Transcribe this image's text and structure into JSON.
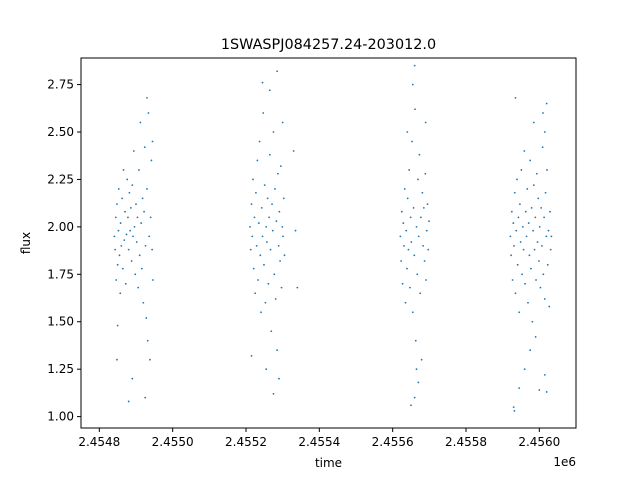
{
  "chart_data": {
    "type": "scatter",
    "title": "1SWASPJ084257.24-203012.0",
    "xlabel": "time",
    "ylabel": "flux",
    "x_offset_label": "1e6",
    "xlim": [
      2454750,
      2456100
    ],
    "ylim": [
      0.94,
      2.89
    ],
    "x_ticks": [
      2454800,
      2455000,
      2455200,
      2455400,
      2455600,
      2455800,
      2456000
    ],
    "x_tick_labels": [
      "2.4548",
      "2.4550",
      "2.4552",
      "2.4554",
      "2.4556",
      "2.4558",
      "2.4560"
    ],
    "y_ticks": [
      1.0,
      1.25,
      1.5,
      1.75,
      2.0,
      2.25,
      2.5,
      2.75
    ],
    "y_tick_labels": [
      "1.00",
      "1.25",
      "1.50",
      "1.75",
      "2.00",
      "2.25",
      "2.50",
      "2.75"
    ],
    "grid": false,
    "marker_color": "#1f77b4",
    "series": [
      {
        "points": [
          [
            2454841,
            1.95
          ],
          [
            2454843,
            1.88
          ],
          [
            2454845,
            2.05
          ],
          [
            2454846,
            1.72
          ],
          [
            2454848,
            2.12
          ],
          [
            2454850,
            1.8
          ],
          [
            2454852,
            1.98
          ],
          [
            2454853,
            2.2
          ],
          [
            2454855,
            1.85
          ],
          [
            2454857,
            1.65
          ],
          [
            2454858,
            2.02
          ],
          [
            2454860,
            1.9
          ],
          [
            2454862,
            2.15
          ],
          [
            2454864,
            1.78
          ],
          [
            2454866,
            2.3
          ],
          [
            2454868,
            1.93
          ],
          [
            2454870,
            2.08
          ],
          [
            2454872,
            1.7
          ],
          [
            2454874,
            1.96
          ],
          [
            2454876,
            2.25
          ],
          [
            2454878,
            2.05
          ],
          [
            2454880,
            1.88
          ],
          [
            2454882,
            2.18
          ],
          [
            2454884,
            1.98
          ],
          [
            2454886,
            2.1
          ],
          [
            2454888,
            1.82
          ],
          [
            2454890,
            2.22
          ],
          [
            2454892,
            1.95
          ],
          [
            2454894,
            2.4
          ],
          [
            2454896,
            2.0
          ],
          [
            2454898,
            1.75
          ],
          [
            2454900,
            2.12
          ],
          [
            2454902,
            1.92
          ],
          [
            2454904,
            2.05
          ],
          [
            2454906,
            1.68
          ],
          [
            2454908,
            2.3
          ],
          [
            2454910,
            1.85
          ],
          [
            2454912,
            2.55
          ],
          [
            2454914,
            2.02
          ],
          [
            2454916,
            1.78
          ],
          [
            2454918,
            2.15
          ],
          [
            2454920,
            1.6
          ],
          [
            2454922,
            2.08
          ],
          [
            2454924,
            2.42
          ],
          [
            2454926,
            1.9
          ],
          [
            2454928,
            1.52
          ],
          [
            2454930,
            2.2
          ],
          [
            2454932,
            1.4
          ],
          [
            2454934,
            2.6
          ],
          [
            2454936,
            1.95
          ],
          [
            2454938,
            1.3
          ],
          [
            2454940,
            2.05
          ],
          [
            2454942,
            2.35
          ],
          [
            2454944,
            1.88
          ],
          [
            2454946,
            1.72
          ],
          [
            2454890,
            1.2
          ],
          [
            2454930,
            2.68
          ],
          [
            2454850,
            1.48
          ],
          [
            2454848,
            1.3
          ],
          [
            2454880,
            1.08
          ],
          [
            2454925,
            1.1
          ],
          [
            2454945,
            2.45
          ],
          [
            2455211,
            2.0
          ],
          [
            2455213,
            1.88
          ],
          [
            2455215,
            2.12
          ],
          [
            2455217,
            1.95
          ],
          [
            2455219,
            2.25
          ],
          [
            2455221,
            1.78
          ],
          [
            2455223,
            2.05
          ],
          [
            2455225,
            1.65
          ],
          [
            2455227,
            2.18
          ],
          [
            2455229,
            1.9
          ],
          [
            2455231,
            2.35
          ],
          [
            2455233,
            1.72
          ],
          [
            2455235,
            2.02
          ],
          [
            2455237,
            2.45
          ],
          [
            2455239,
            1.85
          ],
          [
            2455241,
            1.55
          ],
          [
            2455243,
            2.1
          ],
          [
            2455245,
            1.95
          ],
          [
            2455247,
            2.6
          ],
          [
            2455249,
            1.8
          ],
          [
            2455251,
            2.22
          ],
          [
            2455253,
            1.6
          ],
          [
            2455255,
            2.0
          ],
          [
            2455257,
            1.92
          ],
          [
            2455259,
            2.15
          ],
          [
            2455261,
            1.7
          ],
          [
            2455263,
            2.05
          ],
          [
            2455265,
            2.38
          ],
          [
            2455267,
            1.88
          ],
          [
            2455269,
            1.45
          ],
          [
            2455271,
            2.12
          ],
          [
            2455273,
            1.98
          ],
          [
            2455275,
            2.5
          ],
          [
            2455277,
            1.75
          ],
          [
            2455279,
            2.2
          ],
          [
            2455281,
            1.62
          ],
          [
            2455283,
            2.03
          ],
          [
            2455285,
            1.35
          ],
          [
            2455287,
            2.28
          ],
          [
            2455289,
            1.9
          ],
          [
            2455291,
            2.08
          ],
          [
            2455293,
            1.82
          ],
          [
            2455295,
            2.32
          ],
          [
            2455297,
            1.68
          ],
          [
            2455299,
            2.0
          ],
          [
            2455301,
            1.95
          ],
          [
            2455303,
            2.15
          ],
          [
            2455305,
            1.85
          ],
          [
            2455245,
            2.76
          ],
          [
            2455285,
            2.82
          ],
          [
            2455265,
            2.72
          ],
          [
            2455215,
            1.32
          ],
          [
            2455290,
            1.2
          ],
          [
            2455275,
            1.12
          ],
          [
            2455330,
            2.4
          ],
          [
            2455335,
            1.98
          ],
          [
            2455340,
            1.68
          ],
          [
            2455255,
            1.25
          ],
          [
            2455300,
            2.55
          ],
          [
            2455621,
            1.95
          ],
          [
            2455623,
            1.82
          ],
          [
            2455625,
            2.08
          ],
          [
            2455627,
            1.7
          ],
          [
            2455629,
            2.02
          ],
          [
            2455631,
            1.9
          ],
          [
            2455633,
            2.2
          ],
          [
            2455635,
            1.6
          ],
          [
            2455637,
            1.98
          ],
          [
            2455639,
            1.78
          ],
          [
            2455641,
            2.15
          ],
          [
            2455643,
            1.88
          ],
          [
            2455645,
            2.3
          ],
          [
            2455647,
            1.68
          ],
          [
            2455649,
            2.05
          ],
          [
            2455651,
            1.92
          ],
          [
            2455653,
            2.45
          ],
          [
            2455655,
            1.55
          ],
          [
            2455657,
            2.1
          ],
          [
            2455659,
            1.85
          ],
          [
            2455661,
            2.62
          ],
          [
            2455663,
            1.4
          ],
          [
            2455665,
            2.0
          ],
          [
            2455667,
            1.75
          ],
          [
            2455669,
            2.25
          ],
          [
            2455671,
            1.95
          ],
          [
            2455673,
            2.38
          ],
          [
            2455675,
            1.65
          ],
          [
            2455677,
            2.05
          ],
          [
            2455679,
            1.3
          ],
          [
            2455681,
            2.18
          ],
          [
            2455683,
            1.9
          ],
          [
            2455685,
            2.1
          ],
          [
            2455687,
            1.82
          ],
          [
            2455689,
            2.28
          ],
          [
            2455691,
            1.72
          ],
          [
            2455693,
            1.98
          ],
          [
            2455695,
            2.12
          ],
          [
            2455697,
            1.88
          ],
          [
            2455699,
            2.03
          ],
          [
            2455660,
            2.85
          ],
          [
            2455655,
            2.75
          ],
          [
            2455650,
            1.06
          ],
          [
            2455660,
            1.1
          ],
          [
            2455670,
            1.18
          ],
          [
            2455640,
            2.5
          ],
          [
            2455665,
            1.25
          ],
          [
            2455690,
            2.55
          ],
          [
            2455921,
            1.95
          ],
          [
            2455923,
            1.85
          ],
          [
            2455925,
            2.08
          ],
          [
            2455927,
            1.72
          ],
          [
            2455929,
            2.02
          ],
          [
            2455931,
            1.9
          ],
          [
            2455933,
            2.18
          ],
          [
            2455935,
            1.65
          ],
          [
            2455937,
            1.98
          ],
          [
            2455939,
            2.25
          ],
          [
            2455941,
            1.8
          ],
          [
            2455943,
            2.05
          ],
          [
            2455945,
            1.55
          ],
          [
            2455947,
            2.12
          ],
          [
            2455949,
            1.92
          ],
          [
            2455951,
            2.3
          ],
          [
            2455953,
            1.75
          ],
          [
            2455955,
            2.0
          ],
          [
            2455957,
            1.88
          ],
          [
            2455959,
            2.4
          ],
          [
            2455961,
            1.7
          ],
          [
            2455963,
            2.08
          ],
          [
            2455965,
            1.95
          ],
          [
            2455967,
            2.2
          ],
          [
            2455969,
            1.6
          ],
          [
            2455971,
            2.02
          ],
          [
            2455973,
            1.85
          ],
          [
            2455975,
            2.35
          ],
          [
            2455977,
            1.78
          ],
          [
            2455979,
            2.1
          ],
          [
            2455981,
            1.5
          ],
          [
            2455983,
            1.98
          ],
          [
            2455985,
            2.22
          ],
          [
            2455987,
            1.88
          ],
          [
            2455989,
            2.05
          ],
          [
            2455991,
            1.72
          ],
          [
            2455993,
            2.28
          ],
          [
            2455995,
            1.92
          ],
          [
            2455997,
            2.15
          ],
          [
            2455999,
            1.82
          ],
          [
            2456001,
            2.0
          ],
          [
            2456003,
            1.68
          ],
          [
            2456005,
            2.1
          ],
          [
            2456007,
            1.9
          ],
          [
            2456009,
            2.42
          ],
          [
            2456011,
            1.75
          ],
          [
            2456013,
            2.05
          ],
          [
            2456015,
            1.62
          ],
          [
            2456017,
            2.18
          ],
          [
            2456019,
            1.95
          ],
          [
            2456021,
            2.3
          ],
          [
            2456023,
            1.8
          ],
          [
            2456025,
            1.98
          ],
          [
            2456027,
            1.58
          ],
          [
            2456029,
            2.08
          ],
          [
            2456031,
            1.88
          ],
          [
            2456033,
            1.95
          ],
          [
            2455935,
            2.68
          ],
          [
            2455930,
            1.05
          ],
          [
            2455932,
            1.03
          ],
          [
            2455985,
            2.55
          ],
          [
            2456010,
            2.6
          ],
          [
            2456015,
            2.5
          ],
          [
            2456020,
            2.65
          ],
          [
            2455945,
            1.15
          ],
          [
            2455975,
            1.35
          ],
          [
            2456000,
            1.14
          ],
          [
            2456020,
            1.13
          ],
          [
            2455960,
            1.25
          ],
          [
            2456015,
            1.22
          ],
          [
            2455990,
            1.42
          ]
        ]
      }
    ]
  }
}
